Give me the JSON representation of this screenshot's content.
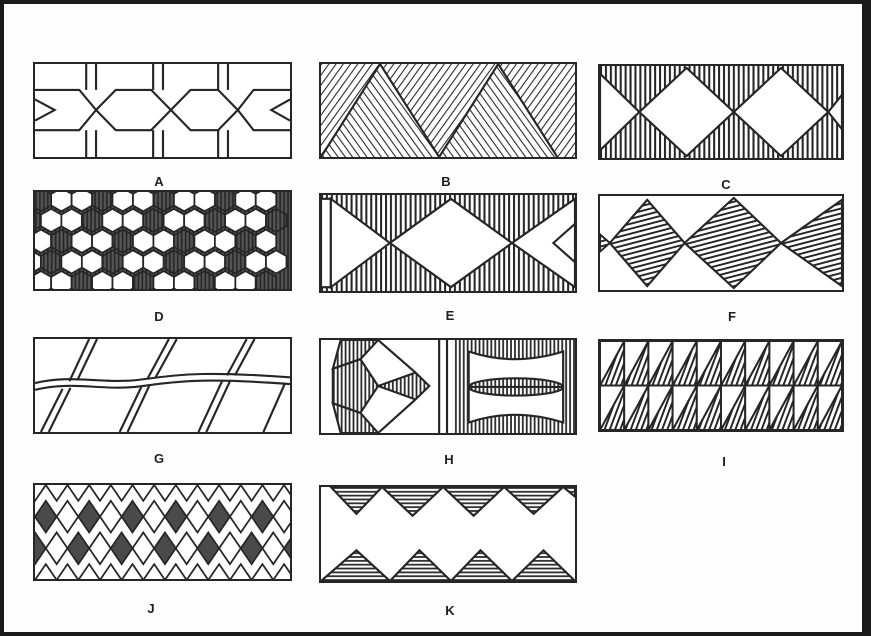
{
  "patterns": [
    {
      "id": "A",
      "label": "A"
    },
    {
      "id": "B",
      "label": "B"
    },
    {
      "id": "C",
      "label": "C"
    },
    {
      "id": "D",
      "label": "D"
    },
    {
      "id": "E",
      "label": "E"
    },
    {
      "id": "F",
      "label": "F"
    },
    {
      "id": "G",
      "label": "G"
    },
    {
      "id": "H",
      "label": "H"
    },
    {
      "id": "I",
      "label": "I"
    },
    {
      "id": "J",
      "label": "J"
    },
    {
      "id": "K",
      "label": "K"
    }
  ],
  "colors": {
    "ink": "#262626",
    "paper": "#ffffff",
    "frame": "#1a1a1a"
  }
}
